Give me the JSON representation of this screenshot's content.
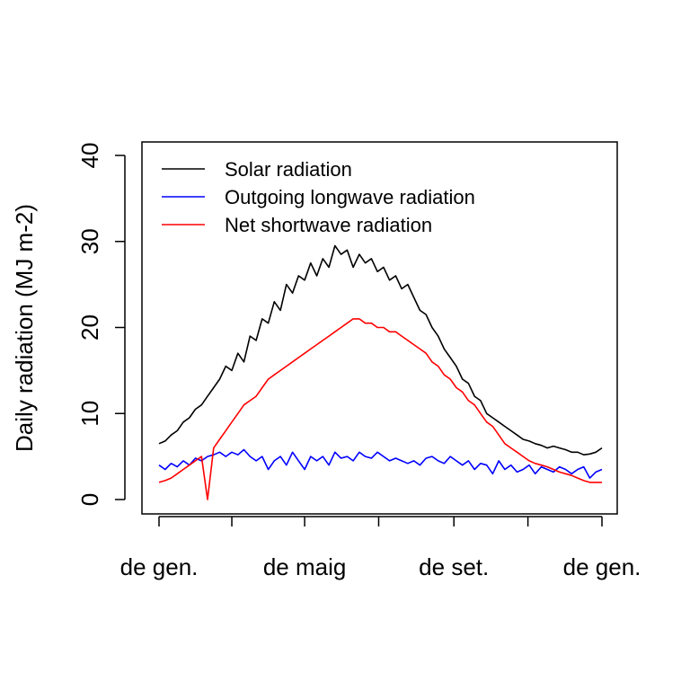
{
  "chart_data": {
    "type": "line",
    "title": "",
    "xlabel": "",
    "ylabel": "Daily radiation (MJ m-2)",
    "ylim": [
      0,
      40
    ],
    "yticks": [
      0,
      10,
      20,
      30,
      40
    ],
    "xlim": [
      0,
      365
    ],
    "xticks": [
      0,
      60,
      120,
      181,
      243,
      304,
      365
    ],
    "xtick_labels": [
      {
        "x": 0,
        "label": "de gen."
      },
      {
        "x": 120,
        "label": "de maig"
      },
      {
        "x": 243,
        "label": "de set."
      },
      {
        "x": 365,
        "label": "de gen."
      }
    ],
    "x_unit": "day of year",
    "grid": false,
    "legend_position": "top-left",
    "series": [
      {
        "name": "Solar radiation",
        "color": "#000000",
        "x": [
          0,
          5,
          10,
          15,
          20,
          25,
          30,
          35,
          40,
          45,
          50,
          55,
          60,
          65,
          70,
          75,
          80,
          85,
          90,
          95,
          100,
          105,
          110,
          115,
          120,
          125,
          130,
          135,
          140,
          145,
          150,
          155,
          160,
          165,
          170,
          175,
          180,
          185,
          190,
          195,
          200,
          205,
          210,
          215,
          220,
          225,
          230,
          235,
          240,
          245,
          250,
          255,
          260,
          265,
          270,
          275,
          280,
          285,
          290,
          295,
          300,
          305,
          310,
          315,
          320,
          325,
          330,
          335,
          340,
          345,
          350,
          355,
          360,
          365
        ],
        "values": [
          6.5,
          6.8,
          7.5,
          8.0,
          9.0,
          9.5,
          10.5,
          11.0,
          12.0,
          13.0,
          14.0,
          15.5,
          15.0,
          17.0,
          16.0,
          19.0,
          18.5,
          21.0,
          20.5,
          23.0,
          22.0,
          25.0,
          24.0,
          26.0,
          25.5,
          27.5,
          26.0,
          28.0,
          27.0,
          29.5,
          28.5,
          29.0,
          27.0,
          28.5,
          27.5,
          28.0,
          26.5,
          27.0,
          25.5,
          26.0,
          24.5,
          25.0,
          23.5,
          22.0,
          21.5,
          20.0,
          19.0,
          17.5,
          16.5,
          15.5,
          14.0,
          13.5,
          12.0,
          11.5,
          10.0,
          9.5,
          9.0,
          8.5,
          8.0,
          7.5,
          7.0,
          6.8,
          6.5,
          6.3,
          6.0,
          6.2,
          6.0,
          5.8,
          5.5,
          5.5,
          5.2,
          5.3,
          5.5,
          6.0
        ]
      },
      {
        "name": "Outgoing longwave radiation",
        "color": "#0000ff",
        "x": [
          0,
          5,
          10,
          15,
          20,
          25,
          30,
          35,
          40,
          45,
          50,
          55,
          60,
          65,
          70,
          75,
          80,
          85,
          90,
          95,
          100,
          105,
          110,
          115,
          120,
          125,
          130,
          135,
          140,
          145,
          150,
          155,
          160,
          165,
          170,
          175,
          180,
          185,
          190,
          195,
          200,
          205,
          210,
          215,
          220,
          225,
          230,
          235,
          240,
          245,
          250,
          255,
          260,
          265,
          270,
          275,
          280,
          285,
          290,
          295,
          300,
          305,
          310,
          315,
          320,
          325,
          330,
          335,
          340,
          345,
          350,
          355,
          360,
          365
        ],
        "values": [
          4.0,
          3.5,
          4.2,
          3.8,
          4.5,
          4.0,
          4.8,
          4.5,
          5.0,
          5.2,
          5.5,
          5.0,
          5.5,
          5.2,
          5.8,
          5.0,
          4.5,
          5.0,
          3.5,
          4.5,
          5.0,
          4.0,
          5.5,
          4.5,
          3.5,
          5.0,
          4.5,
          5.0,
          4.0,
          5.5,
          4.8,
          5.0,
          4.5,
          5.5,
          5.0,
          4.8,
          5.5,
          5.0,
          4.5,
          4.8,
          4.5,
          4.2,
          4.5,
          4.0,
          4.8,
          5.0,
          4.5,
          4.2,
          5.0,
          4.5,
          4.0,
          4.5,
          3.5,
          4.2,
          4.0,
          3.0,
          4.5,
          3.5,
          4.0,
          3.2,
          3.5,
          4.0,
          3.0,
          3.8,
          3.5,
          3.2,
          3.8,
          3.5,
          3.0,
          3.5,
          3.8,
          2.5,
          3.2,
          3.5
        ]
      },
      {
        "name": "Net shortwave radiation",
        "color": "#ff0000",
        "x": [
          0,
          5,
          10,
          15,
          20,
          25,
          30,
          35,
          40,
          45,
          50,
          55,
          60,
          65,
          70,
          75,
          80,
          85,
          90,
          95,
          100,
          105,
          110,
          115,
          120,
          125,
          130,
          135,
          140,
          145,
          150,
          155,
          160,
          165,
          170,
          175,
          180,
          185,
          190,
          195,
          200,
          205,
          210,
          215,
          220,
          225,
          230,
          235,
          240,
          245,
          250,
          255,
          260,
          265,
          270,
          275,
          280,
          285,
          290,
          295,
          300,
          305,
          310,
          315,
          320,
          325,
          330,
          335,
          340,
          345,
          350,
          355,
          360,
          365
        ],
        "values": [
          2.0,
          2.2,
          2.5,
          3.0,
          3.5,
          4.0,
          4.5,
          5.0,
          0.0,
          6.0,
          7.0,
          8.0,
          9.0,
          10.0,
          11.0,
          11.5,
          12.0,
          13.0,
          14.0,
          14.5,
          15.0,
          15.5,
          16.0,
          16.5,
          17.0,
          17.5,
          18.0,
          18.5,
          19.0,
          19.5,
          20.0,
          20.5,
          21.0,
          21.0,
          20.5,
          20.5,
          20.0,
          20.0,
          19.5,
          19.5,
          19.0,
          18.5,
          18.0,
          17.5,
          17.0,
          16.0,
          15.5,
          14.5,
          14.0,
          13.0,
          12.5,
          11.5,
          11.0,
          10.0,
          9.0,
          8.5,
          7.5,
          6.5,
          6.0,
          5.5,
          5.0,
          4.5,
          4.2,
          4.0,
          3.8,
          3.5,
          3.2,
          3.0,
          2.8,
          2.5,
          2.2,
          2.0,
          2.0,
          2.0
        ]
      }
    ]
  }
}
